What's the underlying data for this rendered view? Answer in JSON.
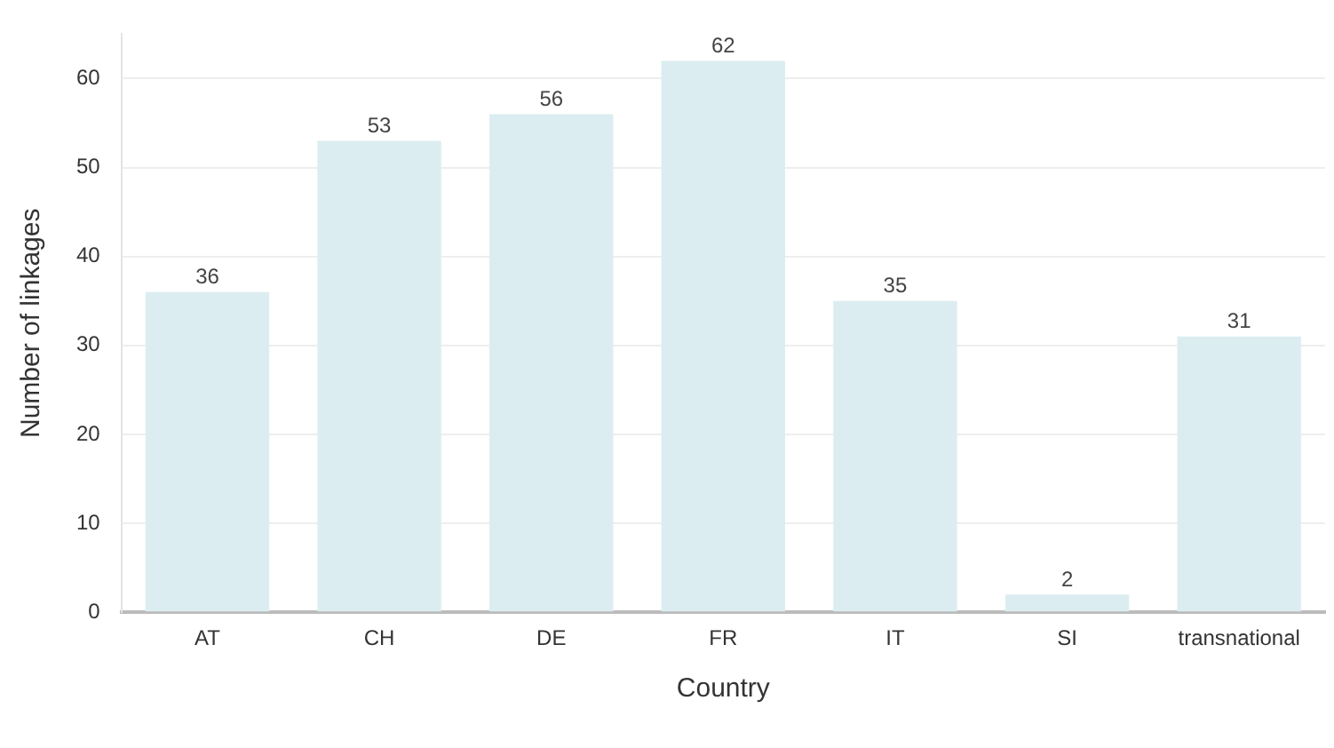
{
  "chart_data": {
    "type": "bar",
    "xlabel": "Country",
    "ylabel": "Number of linkages",
    "categories": [
      "AT",
      "CH",
      "DE",
      "FR",
      "IT",
      "SI",
      "transnational"
    ],
    "values": [
      36,
      53,
      56,
      62,
      35,
      2,
      31
    ],
    "color": "#dcedf1",
    "ylim": [
      0,
      65
    ],
    "yticks": [
      0,
      10,
      20,
      30,
      40,
      50,
      60
    ],
    "grid": "y",
    "data_labels": true,
    "legend": false
  }
}
